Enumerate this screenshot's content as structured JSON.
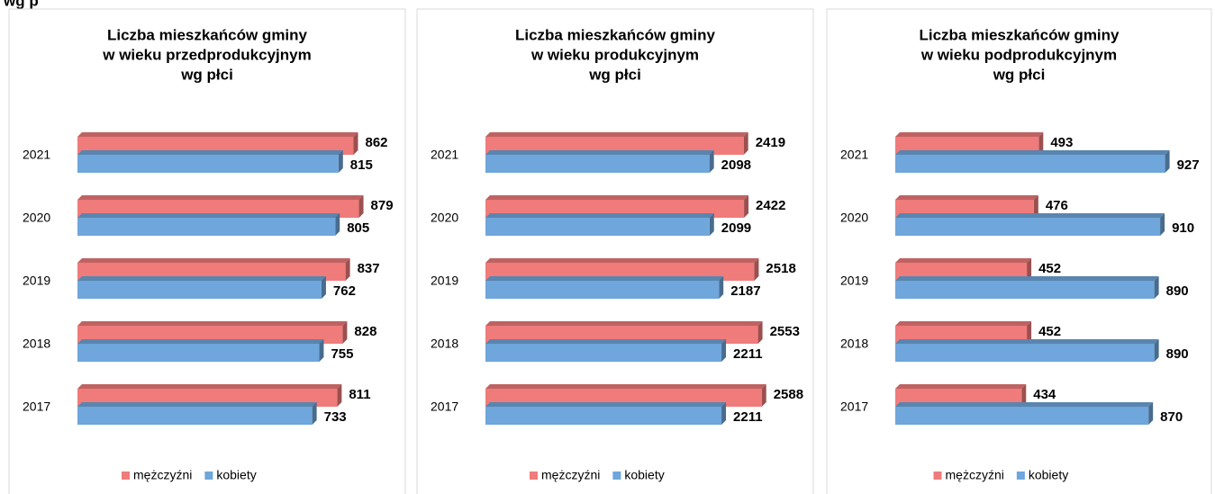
{
  "header": "wg p",
  "chart_data": [
    {
      "type": "bar",
      "orientation": "horizontal",
      "title": [
        "Liczba mieszkańców gminy",
        "w wieku przedprodukcyjnym",
        "wg płci"
      ],
      "categories": [
        "2021",
        "2020",
        "2019",
        "2018",
        "2017"
      ],
      "series": [
        {
          "name": "mężczyźni",
          "color": "#ef7b7b",
          "values": [
            862,
            879,
            837,
            828,
            811
          ]
        },
        {
          "name": "kobiety",
          "color": "#6fa6db",
          "values": [
            815,
            805,
            762,
            755,
            733
          ]
        }
      ],
      "xlim": [
        0,
        900
      ]
    },
    {
      "type": "bar",
      "orientation": "horizontal",
      "title": [
        "Liczba mieszkańców gminy",
        "w wieku produkcyjnym",
        "wg płci"
      ],
      "categories": [
        "2021",
        "2020",
        "2019",
        "2018",
        "2017"
      ],
      "series": [
        {
          "name": "mężczyźni",
          "color": "#ef7b7b",
          "values": [
            2419,
            2422,
            2518,
            2553,
            2588
          ]
        },
        {
          "name": "kobiety",
          "color": "#6fa6db",
          "values": [
            2098,
            2099,
            2187,
            2211,
            2211
          ]
        }
      ],
      "xlim": [
        0,
        2700
      ]
    },
    {
      "type": "bar",
      "orientation": "horizontal",
      "title": [
        "Liczba mieszkańców gminy",
        "w wieku podprodukcyjnym",
        "wg płci"
      ],
      "categories": [
        "2021",
        "2020",
        "2019",
        "2018",
        "2017"
      ],
      "series": [
        {
          "name": "mężczyźni",
          "color": "#ef7b7b",
          "values": [
            493,
            476,
            452,
            452,
            434
          ]
        },
        {
          "name": "kobiety",
          "color": "#6fa6db",
          "values": [
            927,
            910,
            890,
            890,
            870
          ]
        }
      ],
      "xlim": [
        0,
        950
      ]
    }
  ]
}
